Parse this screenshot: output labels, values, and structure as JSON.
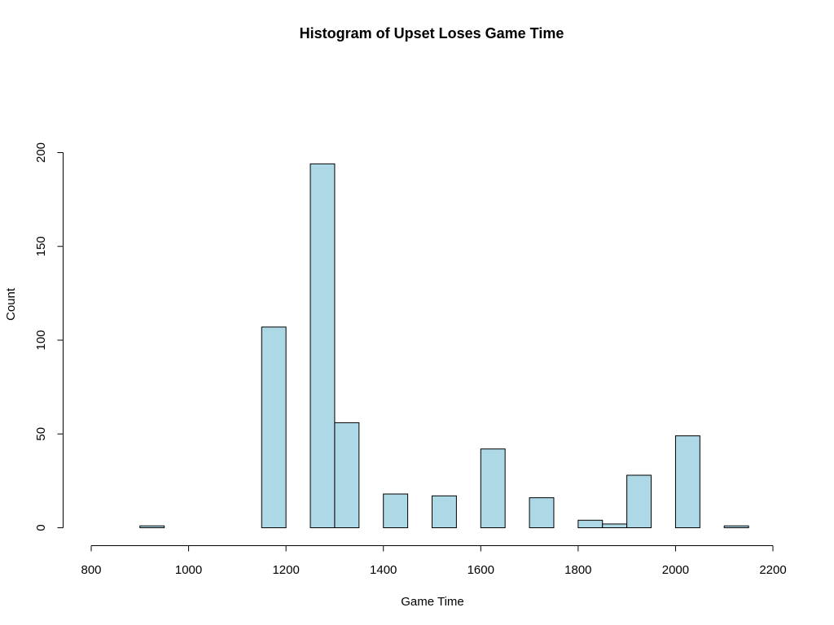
{
  "chart_data": {
    "type": "bar",
    "title": "Histogram of Upset Loses Game Time",
    "xlabel": "Game Time",
    "ylabel": "Count",
    "bin_width": 50,
    "bins": [
      {
        "start": 900,
        "end": 950,
        "count": 1
      },
      {
        "start": 950,
        "end": 1000,
        "count": 0
      },
      {
        "start": 1000,
        "end": 1050,
        "count": 0
      },
      {
        "start": 1050,
        "end": 1100,
        "count": 0
      },
      {
        "start": 1100,
        "end": 1150,
        "count": 0
      },
      {
        "start": 1150,
        "end": 1200,
        "count": 107
      },
      {
        "start": 1200,
        "end": 1250,
        "count": 0
      },
      {
        "start": 1250,
        "end": 1300,
        "count": 194
      },
      {
        "start": 1300,
        "end": 1350,
        "count": 56
      },
      {
        "start": 1350,
        "end": 1400,
        "count": 0
      },
      {
        "start": 1400,
        "end": 1450,
        "count": 18
      },
      {
        "start": 1450,
        "end": 1500,
        "count": 0
      },
      {
        "start": 1500,
        "end": 1550,
        "count": 17
      },
      {
        "start": 1550,
        "end": 1600,
        "count": 0
      },
      {
        "start": 1600,
        "end": 1650,
        "count": 42
      },
      {
        "start": 1650,
        "end": 1700,
        "count": 0
      },
      {
        "start": 1700,
        "end": 1750,
        "count": 16
      },
      {
        "start": 1750,
        "end": 1800,
        "count": 0
      },
      {
        "start": 1800,
        "end": 1850,
        "count": 4
      },
      {
        "start": 1850,
        "end": 1900,
        "count": 2
      },
      {
        "start": 1900,
        "end": 1950,
        "count": 28
      },
      {
        "start": 1950,
        "end": 2000,
        "count": 0
      },
      {
        "start": 2000,
        "end": 2050,
        "count": 49
      },
      {
        "start": 2050,
        "end": 2100,
        "count": 0
      },
      {
        "start": 2100,
        "end": 2150,
        "count": 1
      }
    ],
    "xlim": [
      800,
      2200
    ],
    "ylim": [
      0,
      200
    ],
    "xticks": [
      800,
      1000,
      1200,
      1400,
      1600,
      1800,
      2000,
      2200
    ],
    "yticks": [
      0,
      50,
      100,
      150,
      200
    ],
    "bar_fill": "#add8e6",
    "bar_stroke": "#000000",
    "grid": false,
    "legend": "none"
  }
}
